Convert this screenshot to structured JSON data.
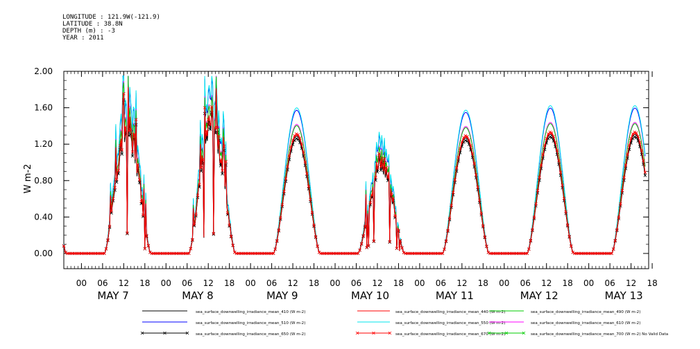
{
  "header": {
    "lines": [
      "LONGITUDE : 121.9W(-121.9)",
      "LATITUDE : 38.8N",
      "DEPTH (m) : -3",
      "YEAR : 2011"
    ]
  },
  "chart_data": {
    "type": "line",
    "title": "",
    "ylabel": "W m-2",
    "xlabel": "",
    "ylim": [
      0,
      2
    ],
    "yticks": [
      "0.00",
      "0.40",
      "0.80",
      "1.20",
      "1.60",
      "2.00"
    ],
    "xlim_hours": [
      -5,
      161
    ],
    "hour_ticks": [
      "00",
      "06",
      "12",
      "18",
      "00",
      "06",
      "12",
      "18",
      "00",
      "06",
      "12",
      "18",
      "00",
      "06",
      "12",
      "18",
      "00",
      "06",
      "12",
      "18",
      "00",
      "06",
      "12",
      "18",
      "00",
      "06",
      "12",
      "18"
    ],
    "day_labels": [
      "MAY  7",
      "MAY  8",
      "MAY  9",
      "MAY 10",
      "MAY 11",
      "MAY 12",
      "MAY 13"
    ],
    "grid": false,
    "legend_position": "bottom",
    "days": [
      {
        "label": "MAY 7",
        "peak": 1.38,
        "spiky": true
      },
      {
        "label": "MAY 8",
        "peak": 1.45,
        "spiky": true
      },
      {
        "label": "MAY 9",
        "peak": 1.3,
        "spiky": false
      },
      {
        "label": "MAY 10",
        "peak": 1.0,
        "spiky": true
      },
      {
        "label": "MAY 11",
        "peak": 1.28,
        "spiky": false
      },
      {
        "label": "MAY 12",
        "peak": 1.32,
        "spiky": false
      },
      {
        "label": "MAY 13",
        "peak": 1.32,
        "spiky": false
      }
    ],
    "series": [
      {
        "name": "sea_surface_downwelling_irradiance_mean_410 (W m-2)",
        "color": "#000000",
        "marker": "none",
        "scale": 0.99
      },
      {
        "name": "sea_surface_downwelling_irradiance_mean_440 (W m-2)",
        "color": "#ff0000",
        "marker": "none",
        "scale": 1.0
      },
      {
        "name": "sea_surface_downwelling_irradiance_mean_490 (W m-2)",
        "color": "#00cc00",
        "marker": "none",
        "scale": 1.08
      },
      {
        "name": "sea_surface_downwelling_irradiance_mean_510 (W m-2)",
        "color": "#0000ff",
        "marker": "none",
        "scale": 1.21
      },
      {
        "name": "sea_surface_downwelling_irradiance_mean_550 (W m-2)",
        "color": "#00e5ee",
        "marker": "none",
        "scale": 1.23
      },
      {
        "name": "sea_surface_downwelling_irradiance_mean_610 (W m-2)",
        "color": "#ff00ff",
        "marker": "none",
        "scale": 1.09
      },
      {
        "name": "sea_surface_downwelling_irradiance_mean_650 (W m-2)",
        "color": "#000000",
        "marker": "x",
        "scale": 0.97
      },
      {
        "name": "sea_surface_downwelling_irradiance_mean_670 (W m-2)",
        "color": "#ff0000",
        "marker": "x",
        "scale": 1.01
      },
      {
        "name": "sea_surface_downwelling_irradiance_mean_700 (W m-2) No Valid Data",
        "color": "#00cc00",
        "marker": "x",
        "scale": 0
      }
    ]
  }
}
